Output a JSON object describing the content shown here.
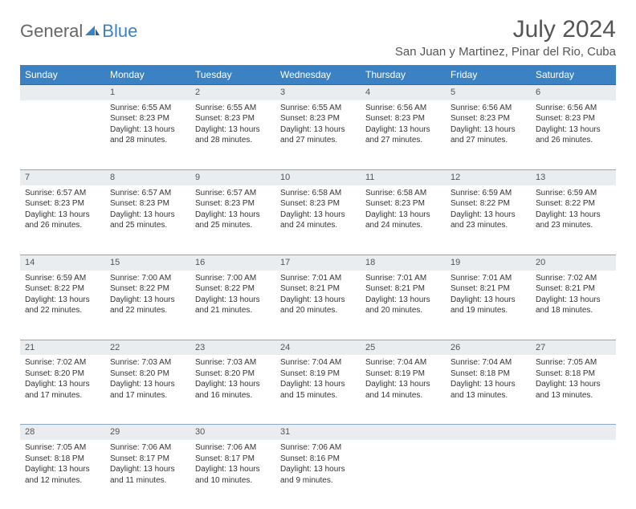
{
  "brand": {
    "part1": "General",
    "part2": "Blue"
  },
  "title": "July 2024",
  "location": "San Juan y Martinez, Pinar del Rio, Cuba",
  "colors": {
    "header_bg": "#3b82c4",
    "header_text": "#ffffff",
    "daynum_bg": "#e9edf0",
    "rule_primary": "#3b6a95",
    "rule_secondary": "#8aa8c2",
    "text": "#333333",
    "title_text": "#555555"
  },
  "typography": {
    "title_fontsize": 30,
    "location_fontsize": 15,
    "weekday_fontsize": 12,
    "daynum_fontsize": 11,
    "body_fontsize": 10
  },
  "weekdays": [
    "Sunday",
    "Monday",
    "Tuesday",
    "Wednesday",
    "Thursday",
    "Friday",
    "Saturday"
  ],
  "weeks": [
    {
      "nums": [
        "",
        "1",
        "2",
        "3",
        "4",
        "5",
        "6"
      ],
      "cells": [
        null,
        {
          "sunrise": "Sunrise: 6:55 AM",
          "sunset": "Sunset: 8:23 PM",
          "daylight": "Daylight: 13 hours and 28 minutes."
        },
        {
          "sunrise": "Sunrise: 6:55 AM",
          "sunset": "Sunset: 8:23 PM",
          "daylight": "Daylight: 13 hours and 28 minutes."
        },
        {
          "sunrise": "Sunrise: 6:55 AM",
          "sunset": "Sunset: 8:23 PM",
          "daylight": "Daylight: 13 hours and 27 minutes."
        },
        {
          "sunrise": "Sunrise: 6:56 AM",
          "sunset": "Sunset: 8:23 PM",
          "daylight": "Daylight: 13 hours and 27 minutes."
        },
        {
          "sunrise": "Sunrise: 6:56 AM",
          "sunset": "Sunset: 8:23 PM",
          "daylight": "Daylight: 13 hours and 27 minutes."
        },
        {
          "sunrise": "Sunrise: 6:56 AM",
          "sunset": "Sunset: 8:23 PM",
          "daylight": "Daylight: 13 hours and 26 minutes."
        }
      ]
    },
    {
      "nums": [
        "7",
        "8",
        "9",
        "10",
        "11",
        "12",
        "13"
      ],
      "cells": [
        {
          "sunrise": "Sunrise: 6:57 AM",
          "sunset": "Sunset: 8:23 PM",
          "daylight": "Daylight: 13 hours and 26 minutes."
        },
        {
          "sunrise": "Sunrise: 6:57 AM",
          "sunset": "Sunset: 8:23 PM",
          "daylight": "Daylight: 13 hours and 25 minutes."
        },
        {
          "sunrise": "Sunrise: 6:57 AM",
          "sunset": "Sunset: 8:23 PM",
          "daylight": "Daylight: 13 hours and 25 minutes."
        },
        {
          "sunrise": "Sunrise: 6:58 AM",
          "sunset": "Sunset: 8:23 PM",
          "daylight": "Daylight: 13 hours and 24 minutes."
        },
        {
          "sunrise": "Sunrise: 6:58 AM",
          "sunset": "Sunset: 8:23 PM",
          "daylight": "Daylight: 13 hours and 24 minutes."
        },
        {
          "sunrise": "Sunrise: 6:59 AM",
          "sunset": "Sunset: 8:22 PM",
          "daylight": "Daylight: 13 hours and 23 minutes."
        },
        {
          "sunrise": "Sunrise: 6:59 AM",
          "sunset": "Sunset: 8:22 PM",
          "daylight": "Daylight: 13 hours and 23 minutes."
        }
      ]
    },
    {
      "nums": [
        "14",
        "15",
        "16",
        "17",
        "18",
        "19",
        "20"
      ],
      "cells": [
        {
          "sunrise": "Sunrise: 6:59 AM",
          "sunset": "Sunset: 8:22 PM",
          "daylight": "Daylight: 13 hours and 22 minutes."
        },
        {
          "sunrise": "Sunrise: 7:00 AM",
          "sunset": "Sunset: 8:22 PM",
          "daylight": "Daylight: 13 hours and 22 minutes."
        },
        {
          "sunrise": "Sunrise: 7:00 AM",
          "sunset": "Sunset: 8:22 PM",
          "daylight": "Daylight: 13 hours and 21 minutes."
        },
        {
          "sunrise": "Sunrise: 7:01 AM",
          "sunset": "Sunset: 8:21 PM",
          "daylight": "Daylight: 13 hours and 20 minutes."
        },
        {
          "sunrise": "Sunrise: 7:01 AM",
          "sunset": "Sunset: 8:21 PM",
          "daylight": "Daylight: 13 hours and 20 minutes."
        },
        {
          "sunrise": "Sunrise: 7:01 AM",
          "sunset": "Sunset: 8:21 PM",
          "daylight": "Daylight: 13 hours and 19 minutes."
        },
        {
          "sunrise": "Sunrise: 7:02 AM",
          "sunset": "Sunset: 8:21 PM",
          "daylight": "Daylight: 13 hours and 18 minutes."
        }
      ]
    },
    {
      "nums": [
        "21",
        "22",
        "23",
        "24",
        "25",
        "26",
        "27"
      ],
      "cells": [
        {
          "sunrise": "Sunrise: 7:02 AM",
          "sunset": "Sunset: 8:20 PM",
          "daylight": "Daylight: 13 hours and 17 minutes."
        },
        {
          "sunrise": "Sunrise: 7:03 AM",
          "sunset": "Sunset: 8:20 PM",
          "daylight": "Daylight: 13 hours and 17 minutes."
        },
        {
          "sunrise": "Sunrise: 7:03 AM",
          "sunset": "Sunset: 8:20 PM",
          "daylight": "Daylight: 13 hours and 16 minutes."
        },
        {
          "sunrise": "Sunrise: 7:04 AM",
          "sunset": "Sunset: 8:19 PM",
          "daylight": "Daylight: 13 hours and 15 minutes."
        },
        {
          "sunrise": "Sunrise: 7:04 AM",
          "sunset": "Sunset: 8:19 PM",
          "daylight": "Daylight: 13 hours and 14 minutes."
        },
        {
          "sunrise": "Sunrise: 7:04 AM",
          "sunset": "Sunset: 8:18 PM",
          "daylight": "Daylight: 13 hours and 13 minutes."
        },
        {
          "sunrise": "Sunrise: 7:05 AM",
          "sunset": "Sunset: 8:18 PM",
          "daylight": "Daylight: 13 hours and 13 minutes."
        }
      ]
    },
    {
      "nums": [
        "28",
        "29",
        "30",
        "31",
        "",
        "",
        ""
      ],
      "cells": [
        {
          "sunrise": "Sunrise: 7:05 AM",
          "sunset": "Sunset: 8:18 PM",
          "daylight": "Daylight: 13 hours and 12 minutes."
        },
        {
          "sunrise": "Sunrise: 7:06 AM",
          "sunset": "Sunset: 8:17 PM",
          "daylight": "Daylight: 13 hours and 11 minutes."
        },
        {
          "sunrise": "Sunrise: 7:06 AM",
          "sunset": "Sunset: 8:17 PM",
          "daylight": "Daylight: 13 hours and 10 minutes."
        },
        {
          "sunrise": "Sunrise: 7:06 AM",
          "sunset": "Sunset: 8:16 PM",
          "daylight": "Daylight: 13 hours and 9 minutes."
        },
        null,
        null,
        null
      ]
    }
  ]
}
